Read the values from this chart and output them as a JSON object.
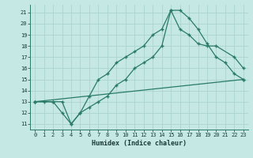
{
  "xlabel": "Humidex (Indice chaleur)",
  "bg_color": "#c5e8e5",
  "grid_color": "#aad4ce",
  "line_color": "#2a7a6a",
  "xlim": [
    -0.5,
    23.5
  ],
  "ylim": [
    10.5,
    21.7
  ],
  "xticks": [
    0,
    1,
    2,
    3,
    4,
    5,
    6,
    7,
    8,
    9,
    10,
    11,
    12,
    13,
    14,
    15,
    16,
    17,
    18,
    19,
    20,
    21,
    22,
    23
  ],
  "yticks": [
    11,
    12,
    13,
    14,
    15,
    16,
    17,
    18,
    19,
    20,
    21
  ],
  "line1_x": [
    0,
    1,
    2,
    3,
    4,
    5,
    6,
    7,
    8,
    9,
    10,
    11,
    12,
    13,
    14,
    15,
    16,
    17,
    18,
    19,
    20,
    21,
    22,
    23
  ],
  "line1_y": [
    13,
    13,
    13,
    13,
    11,
    12,
    13.5,
    15,
    15.5,
    16.5,
    17,
    17.5,
    18,
    19,
    19.5,
    21.2,
    21.2,
    20.5,
    19.5,
    18.2,
    17,
    16.5,
    15.5,
    15
  ],
  "line2_x": [
    0,
    2,
    3,
    4,
    5,
    6,
    7,
    8,
    9,
    10,
    11,
    12,
    13,
    14,
    15,
    16,
    17,
    18,
    19,
    20,
    22,
    23
  ],
  "line2_y": [
    13,
    13,
    12,
    11,
    12,
    12.5,
    13,
    13.5,
    14.5,
    15,
    16,
    16.5,
    17,
    18,
    21.2,
    19.5,
    19,
    18.2,
    18,
    18,
    17,
    16
  ],
  "line3_x": [
    0,
    23
  ],
  "line3_y": [
    13,
    15
  ]
}
